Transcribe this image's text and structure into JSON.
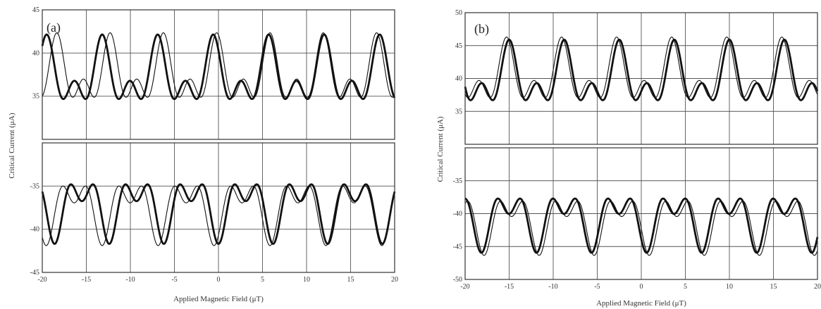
{
  "figure": {
    "xlabel": "Applied Magnetic Field (μT)",
    "ylabel": "Critical Current (μA)"
  },
  "chart_data": [
    {
      "type": "line",
      "panel_label": "(a)",
      "xlabel": "Applied Magnetic Field (μT)",
      "ylabel": "Critical Current (μA)",
      "xlim": [
        -20,
        20
      ],
      "x_ticks": [
        "-20",
        "-15",
        "-10",
        "-5",
        "0",
        "5",
        "10",
        "15",
        "20"
      ],
      "grid": true,
      "subplots": [
        {
          "position": "upper",
          "ylim": [
            30,
            45
          ],
          "y_ticks": [
            "35",
            "40",
            "45"
          ],
          "series": [
            {
              "style": "thick",
              "period": 6.3,
              "phase": -0.6,
              "mean": 36.3,
              "amp_main": 3.9,
              "amp_second": 2.4,
              "shape": "max"
            },
            {
              "style": "thin",
              "period": 6.05,
              "phase": -0.2,
              "mean": 36.5,
              "amp_main": 3.9,
              "amp_second": 2.4,
              "shape": "max"
            }
          ]
        },
        {
          "position": "lower",
          "ylim": [
            -45,
            -30
          ],
          "y_ticks": [
            "-45",
            "-40",
            "-35"
          ],
          "series": [
            {
              "style": "thick",
              "period": 6.2,
              "phase": 0.0,
              "mean": -36.3,
              "amp_main": 3.6,
              "amp_second": 2.4,
              "shape": "min"
            },
            {
              "style": "thin",
              "period": 6.35,
              "phase": -0.5,
              "mean": -36.5,
              "amp_main": 3.6,
              "amp_second": 2.4,
              "shape": "min"
            }
          ]
        }
      ]
    },
    {
      "type": "line",
      "panel_label": "(b)",
      "xlabel": "Applied Magnetic Field (μT)",
      "ylabel": "Critical Current (μA)",
      "xlim": [
        -20,
        20
      ],
      "x_ticks": [
        "-20",
        "-15",
        "-10",
        "-5",
        "0",
        "5",
        "10",
        "15",
        "20"
      ],
      "grid": true,
      "subplots": [
        {
          "position": "upper",
          "ylim": [
            30,
            50
          ],
          "y_ticks": [
            "35",
            "40",
            "45",
            "50"
          ],
          "series": [
            {
              "style": "thick",
              "period": 6.25,
              "phase": -2.5,
              "mean": 38.7,
              "amp_main": 4.8,
              "amp_second": 2.4,
              "shape": "max"
            },
            {
              "style": "thin",
              "period": 6.25,
              "phase": -2.8,
              "mean": 39.1,
              "amp_main": 4.8,
              "amp_second": 2.4,
              "shape": "max"
            }
          ]
        },
        {
          "position": "lower",
          "ylim": [
            -50,
            -30
          ],
          "y_ticks": [
            "-50",
            "-45",
            "-40",
            "-35"
          ],
          "series": [
            {
              "style": "thick",
              "period": 6.25,
              "phase": 0.6,
              "mean": -39.5,
              "amp_main": 4.3,
              "amp_second": 2.4,
              "shape": "min"
            },
            {
              "style": "thin",
              "period": 6.25,
              "phase": 0.9,
              "mean": -39.9,
              "amp_main": 4.3,
              "amp_second": 2.4,
              "shape": "min"
            }
          ]
        }
      ]
    }
  ]
}
